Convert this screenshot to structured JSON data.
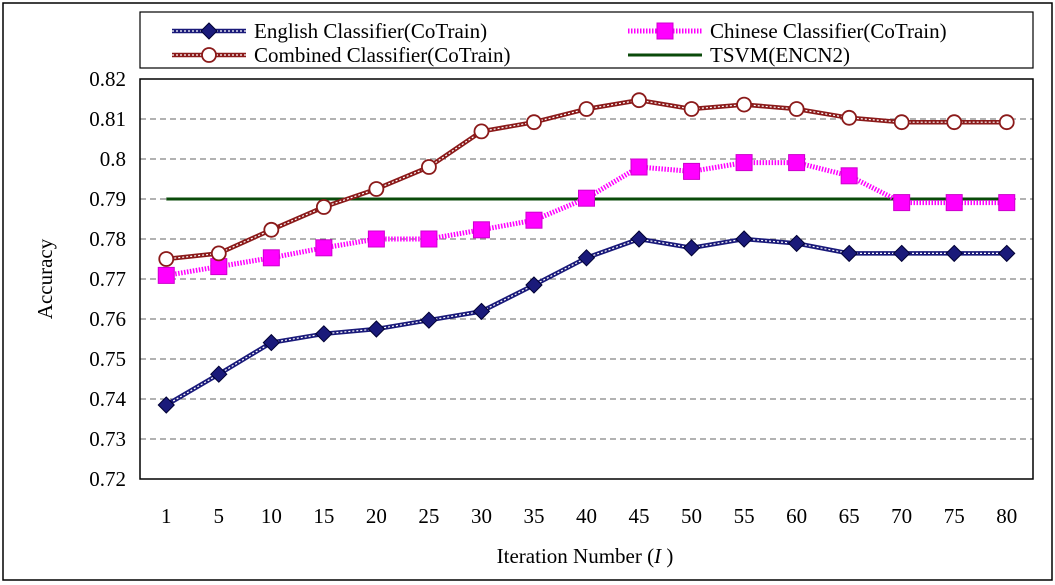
{
  "chart_data": {
    "type": "line",
    "title": "",
    "xlabel": "Iteration Number",
    "xlabel_var": "I",
    "ylabel": "Accuracy",
    "categories": [
      "1",
      "5",
      "10",
      "15",
      "20",
      "25",
      "30",
      "35",
      "40",
      "45",
      "50",
      "55",
      "60",
      "65",
      "70",
      "75",
      "80"
    ],
    "yticks": [
      "0.72",
      "0.73",
      "0.74",
      "0.75",
      "0.76",
      "0.77",
      "0.78",
      "0.79",
      "0.8",
      "0.81",
      "0.82"
    ],
    "ylim": [
      0.72,
      0.82
    ],
    "grid": true,
    "legend_position": "top",
    "series": [
      {
        "name": "English Classifier(CoTrain)",
        "marker": "diamond",
        "color": "#1a1a7a",
        "values": [
          0.7385,
          0.7462,
          0.7541,
          0.7563,
          0.7575,
          0.7597,
          0.7619,
          0.7685,
          0.7753,
          0.78,
          0.7778,
          0.78,
          0.7789,
          0.7764,
          0.7764,
          0.7764,
          0.7764
        ]
      },
      {
        "name": "Chinese Classifier(CoTrain)",
        "marker": "square",
        "color": "#ff00ff",
        "values": [
          0.7709,
          0.7731,
          0.7753,
          0.7778,
          0.78,
          0.78,
          0.7823,
          0.7847,
          0.7902,
          0.798,
          0.7969,
          0.7991,
          0.7991,
          0.7958,
          0.7891,
          0.7891,
          0.7891
        ]
      },
      {
        "name": "Combined Classifier(CoTrain)",
        "marker": "circle",
        "color": "#8b1a1a",
        "values": [
          0.775,
          0.7764,
          0.7823,
          0.788,
          0.7925,
          0.798,
          0.8069,
          0.8092,
          0.8125,
          0.8147,
          0.8125,
          0.8136,
          0.8125,
          0.8103,
          0.8092,
          0.8092,
          0.8092
        ]
      },
      {
        "name": "TSVM(ENCN2)",
        "marker": "none",
        "color": "#0a4a0a",
        "values": [
          0.79,
          0.79,
          0.79,
          0.79,
          0.79,
          0.79,
          0.79,
          0.79,
          0.79,
          0.79,
          0.79,
          0.79,
          0.79,
          0.79,
          0.79,
          0.79,
          0.79
        ]
      }
    ]
  }
}
